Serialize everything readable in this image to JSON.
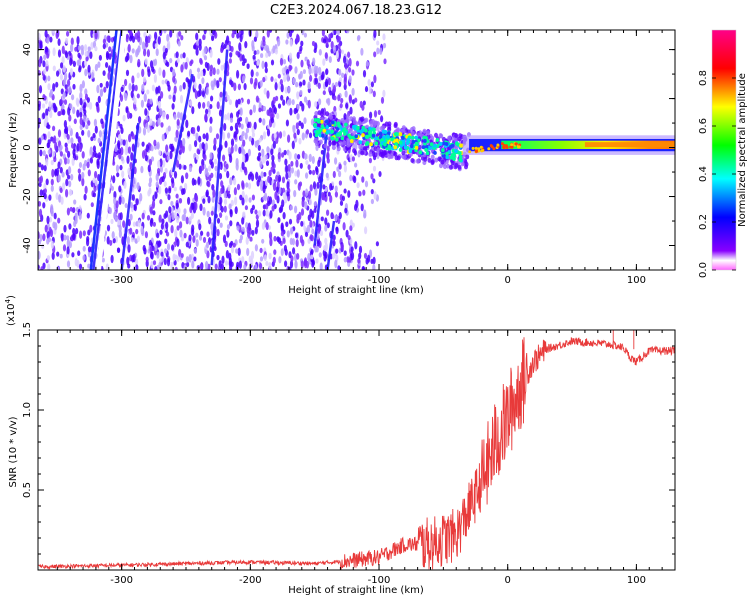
{
  "title": "C2E3.2024.067.18.23.G12",
  "colors": {
    "trace": "#e83a3a",
    "background": "#ffffff",
    "noise_dark": "#4400ff",
    "noise_light": "#b59cff"
  },
  "chart_data": [
    {
      "type": "heatmap",
      "xlabel": "Height of straight line (km)",
      "ylabel": "Frequency (Hz)",
      "xlim": [
        -365,
        130
      ],
      "ylim": [
        -50,
        48
      ],
      "xticks": [
        "-300",
        "-200",
        "-100",
        "0",
        "100"
      ],
      "yticks": [
        "40",
        "20",
        "0",
        "-20",
        "-40"
      ],
      "xtick_values": [
        -300,
        -200,
        -100,
        0,
        100
      ],
      "ytick_values": [
        40,
        20,
        0,
        -20,
        -40
      ],
      "colorbar": {
        "label": "Normalized spectral amplitude",
        "range": [
          0,
          1
        ],
        "ticks": [
          "0.0",
          "0.2",
          "0.4",
          "0.6",
          "0.8"
        ],
        "tick_values": [
          0,
          0.2,
          0.4,
          0.6,
          0.8
        ],
        "colormap": "rainbow (purple → blue → cyan → green → yellow → red → magenta)"
      },
      "features": {
        "broadband_noise_x_range": [
          -365,
          -120
        ],
        "carrier_start_x": -150,
        "carrier_freq_at_start": 8,
        "carrier_freq_at_end": 1,
        "carrier_max_amplitude": 0.9
      }
    },
    {
      "type": "line",
      "xlabel": "Height of straight line (km)",
      "ylabel": "SNR (10 * v/v)",
      "scale_label": "(x10",
      "scale_exponent": "4",
      "scale_close": ")",
      "xlim": [
        -365,
        130
      ],
      "ylim": [
        0,
        1.5
      ],
      "xticks": [
        "-300",
        "-200",
        "-100",
        "0",
        "100"
      ],
      "yticks": [
        "1.5",
        "1.0",
        "0.5"
      ],
      "xtick_values": [
        -300,
        -200,
        -100,
        0,
        100
      ],
      "ytick_values": [
        1.5,
        1.0,
        0.5
      ],
      "series": [
        {
          "x": [
            -365,
            -300,
            -250,
            -200,
            -150,
            -120,
            -100,
            -80,
            -60,
            -40,
            -30,
            -20,
            -10,
            0,
            10,
            20,
            30,
            50,
            80,
            95,
            100,
            110,
            130
          ],
          "y": [
            0.02,
            0.03,
            0.04,
            0.05,
            0.04,
            0.06,
            0.08,
            0.16,
            0.16,
            0.22,
            0.38,
            0.55,
            0.78,
            0.95,
            1.15,
            1.3,
            1.38,
            1.43,
            1.41,
            1.38,
            1.3,
            1.37,
            1.37
          ]
        }
      ]
    }
  ]
}
